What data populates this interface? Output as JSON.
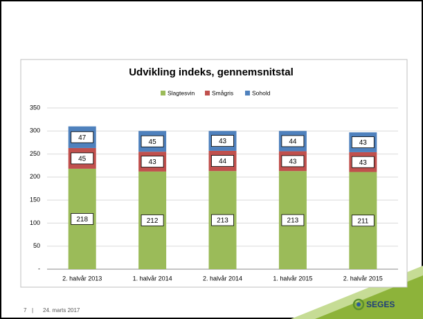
{
  "chart_data": {
    "type": "stacked_bar",
    "title": "Udvikling indeks, gennemsnitstal",
    "categories": [
      "2. halvår 2013",
      "1. halvår 2014",
      "2. halvår 2014",
      "1. halvår 2015",
      "2. halvår 2015"
    ],
    "series": [
      {
        "name": "Slagtesvin",
        "color": "#9bbb59",
        "values": [
          218,
          212,
          213,
          213,
          211
        ]
      },
      {
        "name": "Smågris",
        "color": "#c0504d",
        "values": [
          45,
          43,
          44,
          43,
          43
        ]
      },
      {
        "name": "Sohold",
        "color": "#4f81bd",
        "values": [
          47,
          45,
          43,
          44,
          43
        ]
      }
    ],
    "ylim": [
      0,
      350
    ],
    "yticks": [
      {
        "value": 0,
        "label": "-"
      },
      50,
      100,
      150,
      200,
      250,
      300,
      350
    ],
    "grid": true,
    "legend": "top"
  },
  "footer": {
    "page": "7",
    "separator": "|",
    "date": "24. marts 2017"
  },
  "logo": "SEGES"
}
